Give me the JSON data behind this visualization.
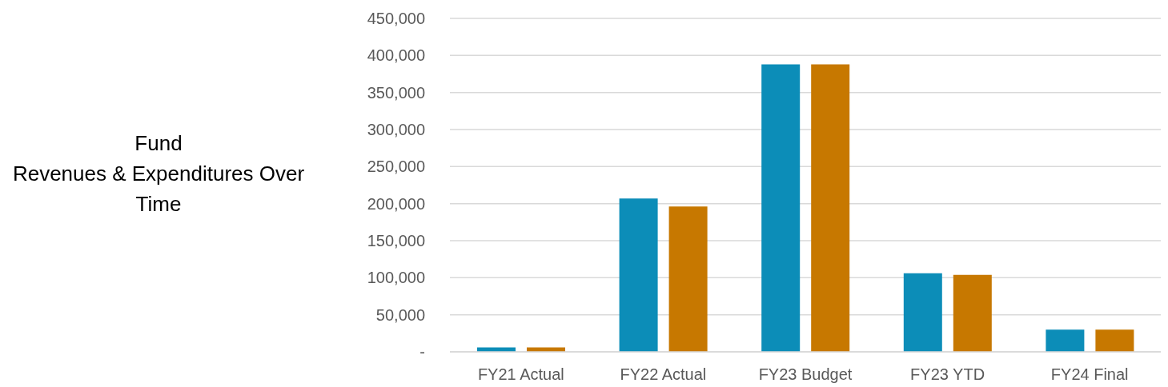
{
  "chart_data": {
    "type": "bar",
    "title": "Fund\nRevenues & Expenditures Over\nTime",
    "categories": [
      "FY21 Actual",
      "FY22 Actual",
      "FY23 Budget",
      "FY23 YTD",
      "FY24 Final"
    ],
    "series": [
      {
        "color": "#0c8db8",
        "values": [
          6000,
          207000,
          388000,
          106000,
          30000
        ]
      },
      {
        "color": "#c77800",
        "values": [
          6000,
          196000,
          388000,
          104000,
          30000
        ]
      }
    ],
    "ylim": [
      0,
      450000
    ],
    "yticks": [
      {
        "value": 0,
        "label": "-"
      },
      {
        "value": 50000,
        "label": "50,000"
      },
      {
        "value": 100000,
        "label": "100,000"
      },
      {
        "value": 150000,
        "label": "150,000"
      },
      {
        "value": 200000,
        "label": "200,000"
      },
      {
        "value": 250000,
        "label": "250,000"
      },
      {
        "value": 300000,
        "label": "300,000"
      },
      {
        "value": 350000,
        "label": "350,000"
      },
      {
        "value": 400000,
        "label": "400,000"
      },
      {
        "value": 450000,
        "label": "450,000"
      }
    ],
    "grid": "y"
  }
}
